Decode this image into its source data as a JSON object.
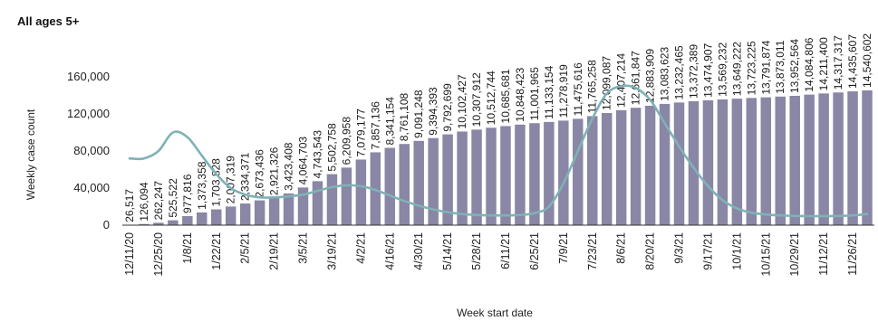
{
  "chart_data": {
    "type": "bar",
    "title": "All ages 5+",
    "xlabel": "Week start date",
    "ylabel": "Weekly case count",
    "ylim": [
      0,
      160000
    ],
    "yticks": [
      "0",
      "40,000",
      "80,000",
      "120,000",
      "160,000"
    ],
    "grid": false,
    "categories": [
      "12/11/20",
      "",
      "12/25/20",
      "",
      "1/8/21",
      "",
      "1/22/21",
      "",
      "2/5/21",
      "",
      "2/19/21",
      "",
      "3/5/21",
      "",
      "3/19/21",
      "",
      "4/2/21",
      "",
      "4/16/21",
      "",
      "4/30/21",
      "",
      "5/14/21",
      "",
      "5/28/21",
      "",
      "6/11/21",
      "",
      "6/25/21",
      "",
      "7/9/21",
      "",
      "7/23/21",
      "",
      "8/6/21",
      "",
      "8/20/21",
      "",
      "9/3/21",
      "",
      "9/17/21",
      "",
      "10/1/21",
      "",
      "10/15/21",
      "",
      "10/29/21",
      "",
      "11/12/21",
      "",
      "11/26/21",
      ""
    ],
    "data_labels": [
      "26,517",
      "126,094",
      "262,247",
      "525,522",
      "977,816",
      "1,373,358",
      "1,703,828",
      "2,007,319",
      "2,334,371",
      "2,673,436",
      "2,921,326",
      "3,423,408",
      "4,064,703",
      "4,743,543",
      "5,502,758",
      "6,209,958",
      "7,079,177",
      "7,857,136",
      "8,341,154",
      "8,761,108",
      "9,091,248",
      "9,394,393",
      "9,792,699",
      "10,102,427",
      "10,307,912",
      "10,512,744",
      "10,685,681",
      "10,848,423",
      "11,001,965",
      "11,133,154",
      "11,278,919",
      "11,475,616",
      "11,765,258",
      "12,099,087",
      "12,407,214",
      "12,661,847",
      "12,883,909",
      "13,083,623",
      "13,232,465",
      "13,372,389",
      "13,474,907",
      "13,569,232",
      "13,649,222",
      "13,723,225",
      "13,791,874",
      "13,873,011",
      "13,952,564",
      "14,084,806",
      "14,211,400",
      "14,317,317",
      "14,435,607",
      "14,540,602"
    ],
    "series": [
      {
        "type": "bar",
        "values": [
          265,
          1261,
          2622,
          5255,
          9778,
          13734,
          17038,
          20073,
          23344,
          26734,
          29213,
          34234,
          40647,
          47435,
          55028,
          62100,
          70792,
          78571,
          83412,
          87611,
          90912,
          93944,
          97927,
          101024,
          103079,
          105127,
          106857,
          108484,
          110020,
          111332,
          112789,
          114756,
          117653,
          120991,
          124072,
          126618,
          128839,
          130836,
          132325,
          133724,
          134749,
          135692,
          136492,
          137232,
          137919,
          138730,
          139526,
          140848,
          142114,
          143173,
          144356,
          145406
        ],
        "color": "#8a86a6"
      },
      {
        "type": "line",
        "values": [
          72000,
          72000,
          80000,
          100000,
          95000,
          75000,
          55000,
          40000,
          33000,
          30000,
          30000,
          31000,
          33000,
          37000,
          41000,
          43000,
          42000,
          38000,
          32000,
          26000,
          21000,
          17000,
          14000,
          12000,
          11000,
          10500,
          10500,
          11000,
          13000,
          20000,
          45000,
          80000,
          115000,
          142000,
          150000,
          148000,
          135000,
          110000,
          85000,
          62000,
          42000,
          27000,
          18000,
          13500,
          11500,
          10500,
          10000,
          9800,
          9700,
          10000,
          10500,
          12000
        ],
        "color": "#7fb2b5"
      }
    ]
  }
}
